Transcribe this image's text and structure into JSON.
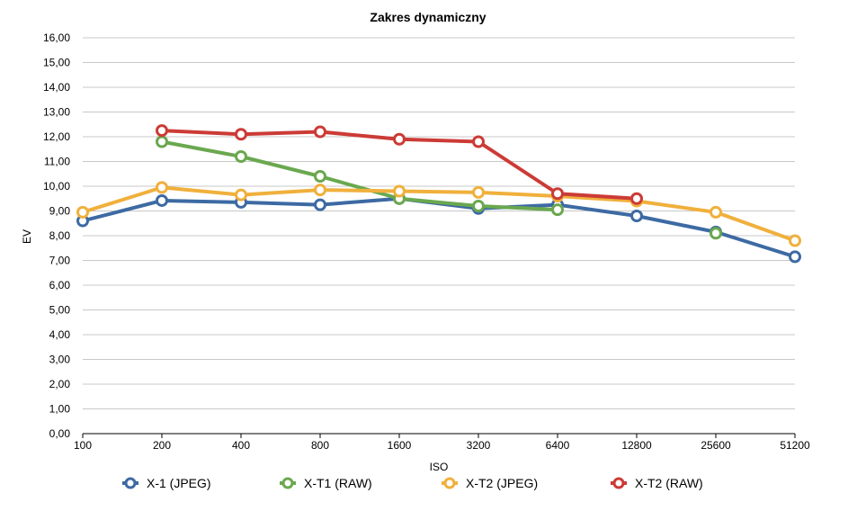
{
  "chart_data": {
    "type": "line",
    "title": "Zakres dynamiczny",
    "xlabel": "ISO",
    "ylabel": "EV",
    "categories": [
      "100",
      "200",
      "400",
      "800",
      "1600",
      "3200",
      "6400",
      "12800",
      "25600",
      "51200"
    ],
    "ylim": [
      0,
      16
    ],
    "ytick_labels": [
      "0,00",
      "1,00",
      "2,00",
      "3,00",
      "4,00",
      "5,00",
      "6,00",
      "7,00",
      "8,00",
      "9,00",
      "10,00",
      "11,00",
      "12,00",
      "13,00",
      "14,00",
      "15,00",
      "16,00"
    ],
    "grid": true,
    "legend_position": "bottom",
    "series": [
      {
        "name": "X-1 (JPEG)",
        "color": "#3d6aa3",
        "values": [
          8.6,
          9.42,
          9.35,
          9.25,
          9.5,
          9.1,
          9.25,
          8.8,
          8.15,
          7.15
        ]
      },
      {
        "name": "X-T1 (RAW)",
        "color": "#6aa84f",
        "values": [
          null,
          11.8,
          11.2,
          10.4,
          9.5,
          9.2,
          9.05,
          null,
          8.1,
          null
        ]
      },
      {
        "name": "X-T2 (JPEG)",
        "color": "#f0b03c",
        "values": [
          8.95,
          9.95,
          9.65,
          9.85,
          9.8,
          9.75,
          9.6,
          9.4,
          8.95,
          7.8
        ]
      },
      {
        "name": "X-T2 (RAW)",
        "color": "#cc3b36",
        "values": [
          null,
          12.25,
          12.1,
          12.2,
          11.9,
          11.8,
          9.7,
          9.5,
          null,
          null
        ]
      }
    ]
  }
}
